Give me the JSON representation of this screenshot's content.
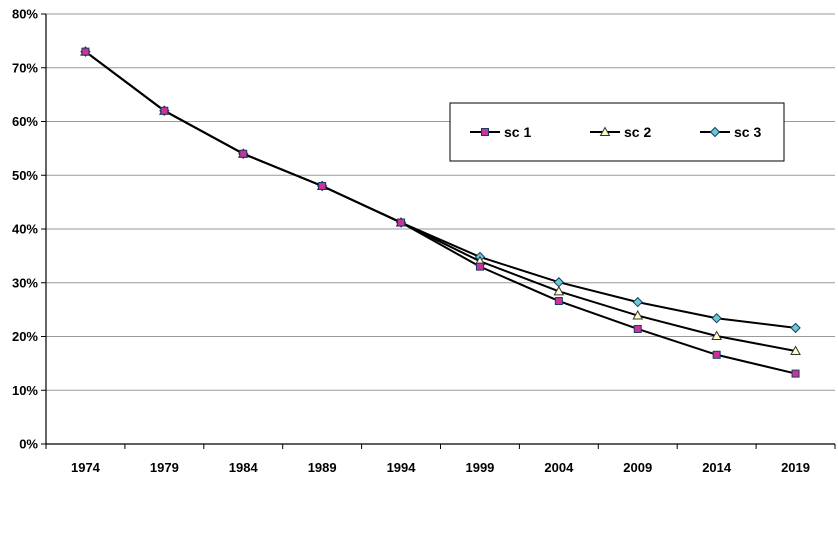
{
  "chart_data": {
    "type": "line",
    "title": "",
    "xlabel": "",
    "ylabel": "",
    "categories": [
      "1974",
      "1979",
      "1984",
      "1989",
      "1994",
      "1999",
      "2004",
      "2009",
      "2014",
      "2019"
    ],
    "ylim": [
      0,
      80
    ],
    "y_ticks": [
      "0%",
      "10%",
      "20%",
      "30%",
      "40%",
      "50%",
      "60%",
      "70%",
      "80%"
    ],
    "grid": "horizontal",
    "legend_position": "top-right",
    "series": [
      {
        "name": "sc 1",
        "marker": "square",
        "color": "#cc3399",
        "values": [
          73,
          62,
          54,
          48,
          41.2,
          33.0,
          26.6,
          21.4,
          16.6,
          13.1
        ]
      },
      {
        "name": "sc 2",
        "marker": "triangle",
        "color": "#ffffcc",
        "values": [
          73,
          62,
          54,
          48,
          41.2,
          34.0,
          28.4,
          23.9,
          20.1,
          17.3
        ]
      },
      {
        "name": "sc 3",
        "marker": "diamond",
        "color": "#66cccc",
        "values": [
          73,
          62,
          54,
          48,
          41.2,
          34.8,
          30.1,
          26.4,
          23.4,
          21.6
        ]
      }
    ]
  }
}
